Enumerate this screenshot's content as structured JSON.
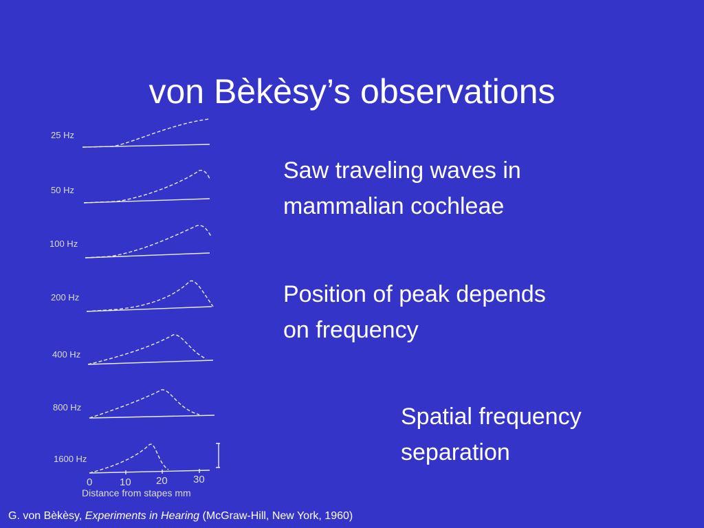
{
  "title": "von Bèkèsy’s observations",
  "figure": {
    "panels": [
      {
        "label": "25 Hz"
      },
      {
        "label": "50 Hz"
      },
      {
        "label": "100 Hz"
      },
      {
        "label": "200 Hz"
      },
      {
        "label": "400 Hz"
      },
      {
        "label": "800 Hz"
      },
      {
        "label": "1600 Hz"
      }
    ],
    "x_ticks": [
      "0",
      "10",
      "20",
      "30"
    ],
    "x_label": "Distance from stapes  mm"
  },
  "bullets": [
    {
      "lines": [
        "Saw traveling waves in",
        "mammalian cochleae"
      ]
    },
    {
      "lines": [
        "Position of peak depends",
        "on frequency"
      ]
    },
    {
      "lines": [
        "Spatial frequency",
        "separation"
      ]
    }
  ],
  "citation": {
    "author": "G. von Bèkèsy, ",
    "book": "Experiments in Hearing",
    "rest": " (McGraw-Hill, New York, 1960)"
  }
}
